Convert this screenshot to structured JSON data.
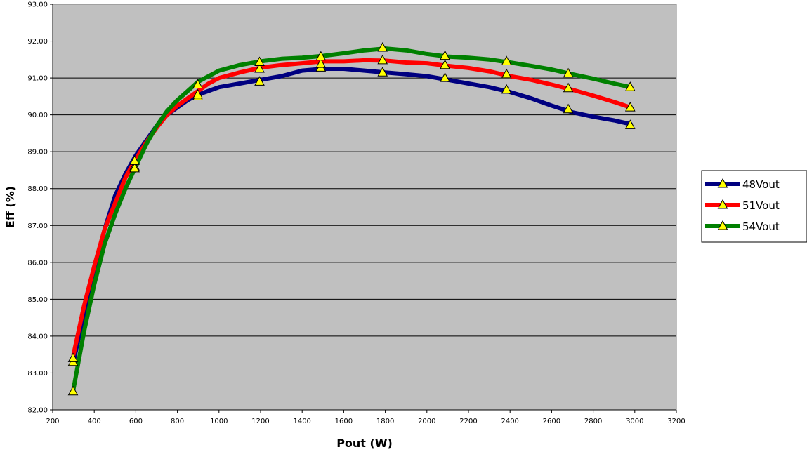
{
  "chart_data": {
    "type": "line",
    "xlabel": "Pout (W)",
    "ylabel": "Eff (%)",
    "xlim": [
      200,
      3200
    ],
    "ylim": [
      82.0,
      93.0
    ],
    "x_ticks": [
      "200",
      "400",
      "600",
      "800",
      "1000",
      "1200",
      "1400",
      "1600",
      "1800",
      "2000",
      "2200",
      "2400",
      "2600",
      "2800",
      "3000",
      "3200"
    ],
    "y_ticks": [
      "82.00",
      "83.00",
      "84.00",
      "85.00",
      "86.00",
      "87.00",
      "88.00",
      "89.00",
      "90.00",
      "91.00",
      "92.00",
      "93.00"
    ],
    "grid": true,
    "legend_position": "right",
    "plot_background": "#c0c0c0",
    "marker": "triangle",
    "marker_color": "#ffff00",
    "series": [
      {
        "name": "48Vout",
        "color": "#000080",
        "line": [
          [
            300,
            83.3
          ],
          [
            350,
            84.6
          ],
          [
            400,
            85.8
          ],
          [
            450,
            86.9
          ],
          [
            500,
            87.8
          ],
          [
            550,
            88.4
          ],
          [
            600,
            88.9
          ],
          [
            650,
            89.3
          ],
          [
            700,
            89.7
          ],
          [
            750,
            90.0
          ],
          [
            800,
            90.2
          ],
          [
            850,
            90.4
          ],
          [
            900,
            90.55
          ],
          [
            950,
            90.65
          ],
          [
            1000,
            90.75
          ],
          [
            1100,
            90.85
          ],
          [
            1200,
            90.95
          ],
          [
            1300,
            91.05
          ],
          [
            1400,
            91.2
          ],
          [
            1500,
            91.25
          ],
          [
            1600,
            91.25
          ],
          [
            1700,
            91.2
          ],
          [
            1800,
            91.15
          ],
          [
            1900,
            91.1
          ],
          [
            2000,
            91.05
          ],
          [
            2100,
            90.95
          ],
          [
            2200,
            90.85
          ],
          [
            2300,
            90.75
          ],
          [
            2400,
            90.62
          ],
          [
            2500,
            90.45
          ],
          [
            2600,
            90.25
          ],
          [
            2700,
            90.07
          ],
          [
            2800,
            89.95
          ],
          [
            2900,
            89.85
          ],
          [
            2980,
            89.75
          ]
        ],
        "markers": [
          [
            298,
            83.3
          ],
          [
            594,
            88.6
          ],
          [
            898,
            90.5
          ],
          [
            1195,
            90.9
          ],
          [
            1490,
            91.28
          ],
          [
            1787,
            91.15
          ],
          [
            2087,
            91.0
          ],
          [
            2383,
            90.68
          ],
          [
            2680,
            90.15
          ],
          [
            2978,
            89.72
          ]
        ]
      },
      {
        "name": "51Vout",
        "color": "#ff0000",
        "line": [
          [
            300,
            83.5
          ],
          [
            350,
            84.8
          ],
          [
            400,
            85.9
          ],
          [
            450,
            86.9
          ],
          [
            500,
            87.6
          ],
          [
            550,
            88.3
          ],
          [
            600,
            88.8
          ],
          [
            650,
            89.25
          ],
          [
            700,
            89.65
          ],
          [
            750,
            90.0
          ],
          [
            800,
            90.25
          ],
          [
            850,
            90.45
          ],
          [
            900,
            90.65
          ],
          [
            950,
            90.85
          ],
          [
            1000,
            91.0
          ],
          [
            1100,
            91.15
          ],
          [
            1200,
            91.28
          ],
          [
            1300,
            91.35
          ],
          [
            1400,
            91.4
          ],
          [
            1500,
            91.45
          ],
          [
            1600,
            91.45
          ],
          [
            1700,
            91.48
          ],
          [
            1800,
            91.47
          ],
          [
            1900,
            91.42
          ],
          [
            2000,
            91.4
          ],
          [
            2100,
            91.33
          ],
          [
            2200,
            91.27
          ],
          [
            2300,
            91.18
          ],
          [
            2400,
            91.05
          ],
          [
            2500,
            90.95
          ],
          [
            2600,
            90.82
          ],
          [
            2700,
            90.68
          ],
          [
            2800,
            90.52
          ],
          [
            2900,
            90.35
          ],
          [
            2980,
            90.2
          ]
        ],
        "markers": [
          [
            298,
            83.4
          ],
          [
            594,
            88.55
          ],
          [
            898,
            90.55
          ],
          [
            1195,
            91.25
          ],
          [
            1490,
            91.38
          ],
          [
            1787,
            91.48
          ],
          [
            2087,
            91.35
          ],
          [
            2383,
            91.1
          ],
          [
            2680,
            90.72
          ],
          [
            2978,
            90.2
          ]
        ]
      },
      {
        "name": "54Vout",
        "color": "#008000",
        "line": [
          [
            298,
            82.5
          ],
          [
            350,
            84.1
          ],
          [
            400,
            85.4
          ],
          [
            450,
            86.5
          ],
          [
            500,
            87.3
          ],
          [
            550,
            88.0
          ],
          [
            600,
            88.6
          ],
          [
            650,
            89.2
          ],
          [
            700,
            89.7
          ],
          [
            750,
            90.1
          ],
          [
            800,
            90.4
          ],
          [
            850,
            90.65
          ],
          [
            900,
            90.9
          ],
          [
            950,
            91.05
          ],
          [
            1000,
            91.2
          ],
          [
            1100,
            91.35
          ],
          [
            1200,
            91.45
          ],
          [
            1300,
            91.52
          ],
          [
            1400,
            91.55
          ],
          [
            1500,
            91.6
          ],
          [
            1600,
            91.67
          ],
          [
            1700,
            91.75
          ],
          [
            1800,
            91.8
          ],
          [
            1900,
            91.75
          ],
          [
            2000,
            91.65
          ],
          [
            2100,
            91.58
          ],
          [
            2200,
            91.55
          ],
          [
            2300,
            91.5
          ],
          [
            2400,
            91.42
          ],
          [
            2500,
            91.33
          ],
          [
            2600,
            91.23
          ],
          [
            2700,
            91.1
          ],
          [
            2800,
            90.98
          ],
          [
            2900,
            90.85
          ],
          [
            2980,
            90.75
          ]
        ],
        "markers": [
          [
            298,
            82.5
          ],
          [
            594,
            88.75
          ],
          [
            898,
            90.82
          ],
          [
            1195,
            91.43
          ],
          [
            1490,
            91.58
          ],
          [
            1787,
            91.82
          ],
          [
            2087,
            91.6
          ],
          [
            2383,
            91.45
          ],
          [
            2680,
            91.12
          ],
          [
            2978,
            90.75
          ]
        ]
      }
    ]
  }
}
